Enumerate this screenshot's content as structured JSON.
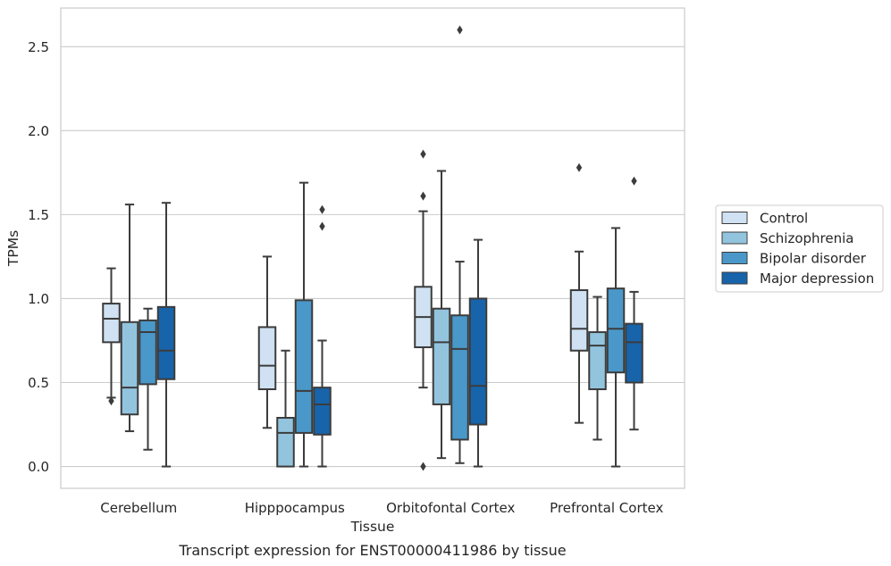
{
  "chart_data": {
    "type": "box",
    "caption": "Transcript expression for ENST00000411986 by tissue",
    "xlabel": "Tissue",
    "ylabel": "TPMs",
    "ylim": [
      -0.13,
      2.73
    ],
    "yticks": [
      0.0,
      0.5,
      1.0,
      1.5,
      2.0,
      2.5
    ],
    "ytick_labels": [
      "0.0",
      "0.5",
      "1.0",
      "1.5",
      "2.0",
      "2.5"
    ],
    "grid": "horizontal",
    "legend_position": "right",
    "categories": [
      "Cerebellum",
      "Hipppocampus",
      "Orbitofontal Cortex",
      "Prefrontal Cortex"
    ],
    "series": [
      {
        "name": "Control",
        "color": "#cfe1f2",
        "boxes": [
          {
            "whisker_low": 0.41,
            "q1": 0.74,
            "median": 0.88,
            "q3": 0.97,
            "whisker_high": 1.18,
            "outliers": [
              0.39
            ]
          },
          {
            "whisker_low": 0.23,
            "q1": 0.46,
            "median": 0.6,
            "q3": 0.83,
            "whisker_high": 1.25,
            "outliers": []
          },
          {
            "whisker_low": 0.47,
            "q1": 0.71,
            "median": 0.89,
            "q3": 1.07,
            "whisker_high": 1.52,
            "outliers": [
              1.86,
              1.61,
              0.0
            ]
          },
          {
            "whisker_low": 0.26,
            "q1": 0.69,
            "median": 0.82,
            "q3": 1.05,
            "whisker_high": 1.28,
            "outliers": [
              1.78
            ]
          }
        ]
      },
      {
        "name": "Schizophrenia",
        "color": "#93c4de",
        "boxes": [
          {
            "whisker_low": 0.21,
            "q1": 0.31,
            "median": 0.47,
            "q3": 0.86,
            "whisker_high": 1.56,
            "outliers": []
          },
          {
            "whisker_low": 0.0,
            "q1": 0.0,
            "median": 0.2,
            "q3": 0.29,
            "whisker_high": 0.69,
            "outliers": []
          },
          {
            "whisker_low": 0.05,
            "q1": 0.37,
            "median": 0.74,
            "q3": 0.94,
            "whisker_high": 1.76,
            "outliers": []
          },
          {
            "whisker_low": 0.16,
            "q1": 0.46,
            "median": 0.72,
            "q3": 0.8,
            "whisker_high": 1.01,
            "outliers": []
          }
        ]
      },
      {
        "name": "Bipolar disorder",
        "color": "#4a98c9",
        "boxes": [
          {
            "whisker_low": 0.1,
            "q1": 0.49,
            "median": 0.8,
            "q3": 0.87,
            "whisker_high": 0.94,
            "outliers": []
          },
          {
            "whisker_low": 0.0,
            "q1": 0.2,
            "median": 0.45,
            "q3": 0.99,
            "whisker_high": 1.69,
            "outliers": []
          },
          {
            "whisker_low": 0.02,
            "q1": 0.16,
            "median": 0.7,
            "q3": 0.9,
            "whisker_high": 1.22,
            "outliers": [
              2.6
            ]
          },
          {
            "whisker_low": 0.0,
            "q1": 0.56,
            "median": 0.82,
            "q3": 1.06,
            "whisker_high": 1.42,
            "outliers": []
          }
        ]
      },
      {
        "name": "Major depression",
        "color": "#1764ab",
        "boxes": [
          {
            "whisker_low": 0.0,
            "q1": 0.52,
            "median": 0.69,
            "q3": 0.95,
            "whisker_high": 1.57,
            "outliers": []
          },
          {
            "whisker_low": 0.0,
            "q1": 0.19,
            "median": 0.37,
            "q3": 0.47,
            "whisker_high": 0.75,
            "outliers": [
              1.53,
              1.43
            ]
          },
          {
            "whisker_low": 0.0,
            "q1": 0.25,
            "median": 0.48,
            "q3": 1.0,
            "whisker_high": 1.35,
            "outliers": []
          },
          {
            "whisker_low": 0.22,
            "q1": 0.5,
            "median": 0.74,
            "q3": 0.85,
            "whisker_high": 1.04,
            "outliers": [
              1.7
            ]
          }
        ]
      }
    ]
  }
}
